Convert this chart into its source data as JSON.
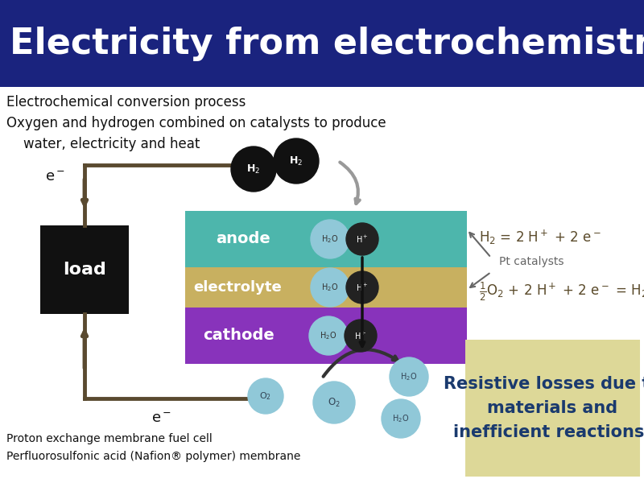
{
  "title": "Electricity from electrochemistry",
  "title_bg": "#1a237e",
  "title_color": "#ffffff",
  "title_fontsize": 32,
  "subtitle1": "Electrochemical conversion process",
  "subtitle2": "Oxygen and hydrogen combined on catalysts to produce",
  "subtitle3": "    water, electricity and heat",
  "subtitle_fontsize": 12,
  "bg_color": "#ffffff",
  "anode_color": "#4db6ac",
  "electrolyte_color": "#c8b060",
  "cathode_color": "#8833bb",
  "load_color": "#111111",
  "h2_ball_color": "#111111",
  "o2_ball_color": "#90c8d8",
  "h2o_ball_color": "#90c8d8",
  "hplus_ball_color": "#222222",
  "resistive_box_color": "#ddd898",
  "resistive_text": "Resistive losses due to\nmaterials and\ninefficient reactions.",
  "bottom_text1": "Proton exchange membrane fuel cell",
  "bottom_text2": "Perfluorosulfonic acid (Nafion® polymer) membrane",
  "line_color": "#5a4a30",
  "eq_color": "#5a4a2a",
  "arrow_color": "#666666",
  "dark_arrow_color": "#444444"
}
